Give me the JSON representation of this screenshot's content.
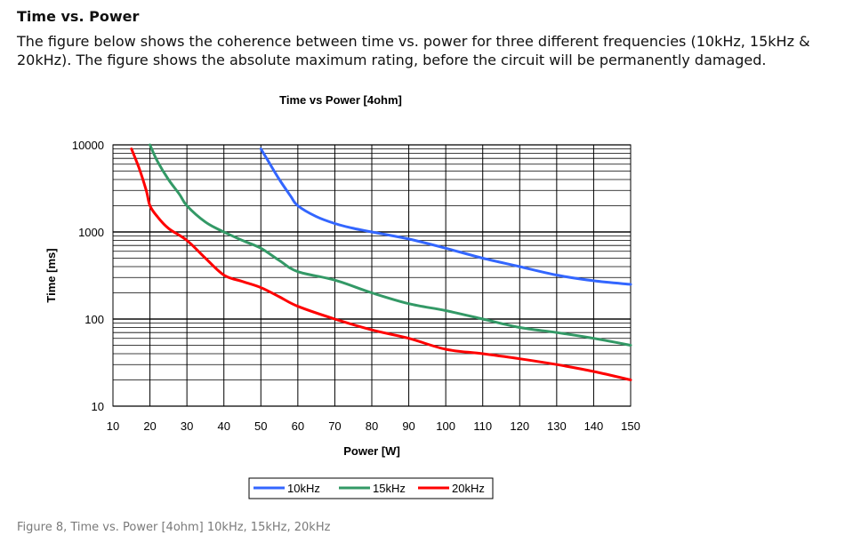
{
  "document": {
    "section_title": "Time vs. Power",
    "intro": "The figure below shows the coherence between time vs. power for three different frequencies (10kHz, 15kHz & 20kHz). The figure shows the absolute maximum rating, before the circuit will be permanently damaged.",
    "caption": "Figure 8, Time vs. Power [4ohm] 10kHz, 15kHz, 20kHz"
  },
  "chart_data": {
    "type": "line",
    "title": "Time vs Power [4ohm]",
    "xlabel": "Power [W]",
    "ylabel": "Time [ms]",
    "xlim": [
      10,
      150
    ],
    "ylim": [
      10,
      10000
    ],
    "yscale": "log",
    "x_ticks": [
      "10",
      "20",
      "30",
      "40",
      "50",
      "60",
      "70",
      "80",
      "90",
      "100",
      "110",
      "120",
      "130",
      "140",
      "150"
    ],
    "y_ticks": [
      "10",
      "100",
      "1000",
      "10000"
    ],
    "grid": true,
    "legend_position": "bottom",
    "series": [
      {
        "name": "10kHz",
        "color": "#3366ff",
        "x": [
          50,
          52,
          55,
          58,
          60,
          65,
          70,
          75,
          80,
          90,
          100,
          110,
          120,
          130,
          140,
          150
        ],
        "y": [
          9000,
          6500,
          4000,
          2600,
          2000,
          1500,
          1250,
          1100,
          1000,
          830,
          650,
          500,
          400,
          320,
          275,
          250
        ]
      },
      {
        "name": "15kHz",
        "color": "#339966",
        "x": [
          20,
          22,
          25,
          28,
          30,
          35,
          40,
          45,
          50,
          55,
          60,
          70,
          80,
          90,
          100,
          110,
          120,
          130,
          140,
          150
        ],
        "y": [
          10000,
          6500,
          4000,
          2700,
          2000,
          1300,
          1000,
          800,
          650,
          470,
          350,
          280,
          200,
          150,
          125,
          100,
          80,
          70,
          60,
          50
        ]
      },
      {
        "name": "20kHz",
        "color": "#ff0000",
        "x": [
          15,
          17,
          19,
          20,
          22,
          25,
          30,
          35,
          40,
          45,
          50,
          55,
          60,
          70,
          80,
          90,
          100,
          110,
          120,
          130,
          140,
          150
        ],
        "y": [
          9000,
          5500,
          3000,
          2000,
          1500,
          1100,
          800,
          500,
          320,
          270,
          230,
          180,
          140,
          100,
          75,
          60,
          45,
          40,
          35,
          30,
          25,
          20
        ]
      }
    ]
  }
}
